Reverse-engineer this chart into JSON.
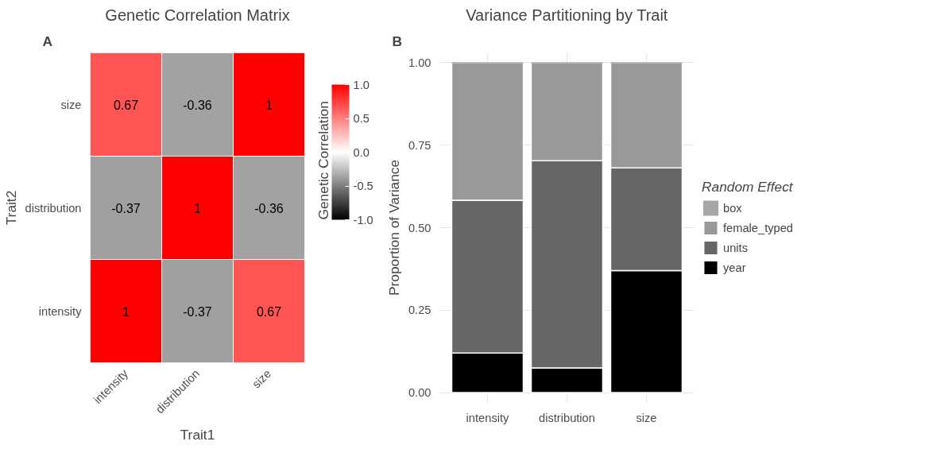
{
  "chart_data": [
    {
      "type": "heatmap",
      "title": "Genetic Correlation Matrix",
      "xlabel": "Trait1",
      "ylabel": "Trait2",
      "clabel": "Genetic Correlation",
      "categories": [
        "intensity",
        "distribution",
        "size"
      ],
      "y_categories": [
        "size",
        "distribution",
        "intensity"
      ],
      "cells": [
        [
          0.67,
          -0.36,
          1
        ],
        [
          -0.37,
          1,
          -0.36
        ],
        [
          1,
          -0.37,
          0.67
        ]
      ],
      "clim": [
        -1,
        1
      ],
      "cticks": [
        {
          "value": -1,
          "label": "-1.0"
        },
        {
          "value": -0.5,
          "label": "-0.5"
        },
        {
          "value": 0,
          "label": "0.0"
        },
        {
          "value": 0.5,
          "label": "0.5"
        },
        {
          "value": 1,
          "label": "1.0"
        }
      ],
      "data_labels": true,
      "grid": false,
      "annotations": [
        "A"
      ]
    },
    {
      "type": "bar",
      "title": "Variance Partitioning by Trait",
      "ylabel": "Proportion of Variance",
      "legend_title": "Random Effect",
      "categories": [
        "intensity",
        "distribution",
        "size"
      ],
      "stacked": true,
      "series": [
        {
          "name": "year",
          "color": "#000000",
          "values": [
            0.12,
            0.075,
            0.37
          ]
        },
        {
          "name": "units",
          "color": "#666666",
          "values": [
            0.463,
            0.628,
            0.311
          ]
        },
        {
          "name": "female_typed",
          "color": "#999999",
          "values": [
            0.417,
            0.297,
            0.319
          ]
        },
        {
          "name": "box",
          "color": "#a6a6a6",
          "values": [
            0,
            0,
            0
          ]
        }
      ],
      "ylim": [
        -0.03,
        1.03
      ],
      "yticks": [
        {
          "value": 0,
          "label": "0.00"
        },
        {
          "value": 0.25,
          "label": "0.25"
        },
        {
          "value": 0.5,
          "label": "0.50"
        },
        {
          "value": 0.75,
          "label": "0.75"
        },
        {
          "value": 1,
          "label": "1.00"
        }
      ],
      "grid": true,
      "legend": "right",
      "annotations": [
        "B"
      ]
    }
  ]
}
